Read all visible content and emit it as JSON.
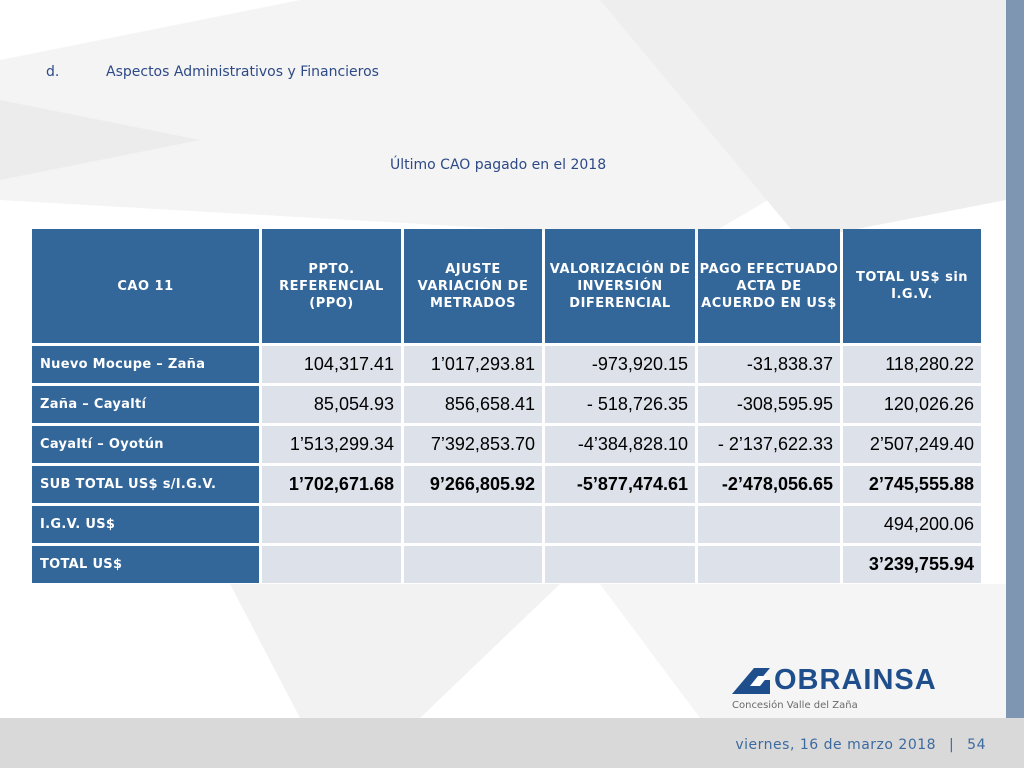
{
  "section": {
    "number": "d.",
    "title": "Aspectos Administrativos y Financieros"
  },
  "subtitle": "Último CAO pagado en el 2018",
  "table": {
    "headers": [
      "CAO 11",
      "PPTO. REFERENCIAL (PPO)",
      "AJUSTE VARIACIÓN DE METRADOS",
      "VALORIZACIÓN DE INVERSIÓN DIFERENCIAL",
      "PAGO EFECTUADO ACTA DE ACUERDO EN US$",
      "TOTAL US$ sin I.G.V."
    ],
    "rows": [
      {
        "label": "Nuevo Mocupe – Zaña",
        "values": [
          "104,317.41",
          "1’017,293.81",
          "-973,920.15",
          "-31,838.37",
          "118,280.22"
        ]
      },
      {
        "label": "Zaña – Cayaltí",
        "values": [
          "85,054.93",
          "856,658.41",
          "- 518,726.35",
          "-308,595.95",
          "120,026.26"
        ]
      },
      {
        "label": "Cayaltí – Oyotún",
        "values": [
          "1’513,299.34",
          "7’392,853.70",
          "-4’384,828.10",
          "- 2’137,622.33",
          "2’507,249.40"
        ]
      },
      {
        "label": "SUB TOTAL US$ s/I.G.V.",
        "values": [
          "1’702,671.68",
          "9’266,805.92",
          "-5’877,474.61",
          "-2’478,056.65",
          "2’745,555.88"
        ]
      },
      {
        "label": "I.G.V. US$",
        "values": [
          "",
          "",
          "",
          "",
          "494,200.06"
        ]
      },
      {
        "label": "TOTAL US$",
        "values": [
          "",
          "",
          "",
          "",
          "3’239,755.94"
        ]
      }
    ]
  },
  "logo": {
    "name": "OBRAINSA",
    "tagline": "Concesión Valle del Zaña",
    "icon": "obrainsa-logo-icon"
  },
  "footer": {
    "date": "viernes, 16 de marzo 2018",
    "separator": "|",
    "page": "54"
  },
  "colors": {
    "header_blue": "#336699",
    "cell_gray": "#dde1ea",
    "text_blue": "#2d4a86",
    "side_bar": "#7f96b3"
  }
}
